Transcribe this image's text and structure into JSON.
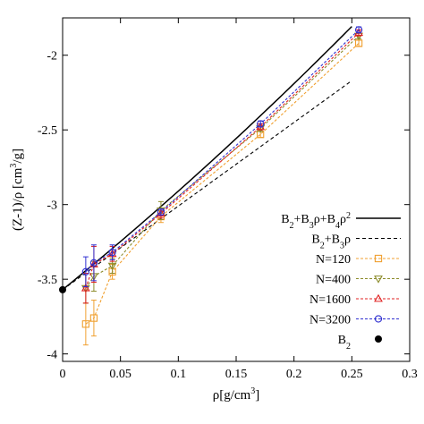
{
  "chart_data": {
    "type": "scatter",
    "title": "",
    "xlabel_main": "ρ[g/cm",
    "xlabel_sup": "3",
    "xlabel_tail": "]",
    "ylabel_main": "(Z-1)/ρ [cm",
    "ylabel_sup": "3",
    "ylabel_tail": "/g]",
    "xlim": [
      0,
      0.3
    ],
    "ylim": [
      -4.05,
      -1.75
    ],
    "xticks": [
      0,
      0.05,
      0.1,
      0.15,
      0.2,
      0.25,
      0.3
    ],
    "xtick_labels": [
      "0",
      "0.05",
      "0.1",
      "0.15",
      "0.2",
      "0.25",
      "0.3"
    ],
    "yticks": [
      -4,
      -3.5,
      -3,
      -2.5,
      -2
    ],
    "ytick_labels": [
      "-4",
      "-3.5",
      "-3",
      "-2.5",
      "-2"
    ],
    "legend_position": "bottom-right",
    "lines": [
      {
        "key": "b234",
        "legend_parts": [
          {
            "t": "B",
            "s": "base"
          },
          {
            "t": "2",
            "s": "sub"
          },
          {
            "t": "+B",
            "s": "base"
          },
          {
            "t": "3",
            "s": "sub"
          },
          {
            "t": "ρ+B",
            "s": "base"
          },
          {
            "t": "4",
            "s": "sub"
          },
          {
            "t": "ρ",
            "s": "base"
          },
          {
            "t": "2",
            "s": "sup"
          }
        ],
        "color": "#000000",
        "dash": "",
        "b2": -3.57,
        "b3": 6.3,
        "b4": 3.0,
        "x_range": [
          0,
          0.25
        ]
      },
      {
        "key": "b23",
        "legend_parts": [
          {
            "t": "B",
            "s": "base"
          },
          {
            "t": "2",
            "s": "sub"
          },
          {
            "t": "+B",
            "s": "base"
          },
          {
            "t": "3",
            "s": "sub"
          },
          {
            "t": "ρ",
            "s": "base"
          }
        ],
        "color": "#000000",
        "dash": "4,3",
        "b2": -3.57,
        "b3": 5.6,
        "b4": 0,
        "x_range": [
          0,
          0.25
        ]
      }
    ],
    "series": [
      {
        "key": "n120",
        "name": "N=120",
        "color": "#f0a030",
        "marker": "square",
        "points": [
          {
            "x": 0.02,
            "y": -3.8,
            "err": 0.14
          },
          {
            "x": 0.027,
            "y": -3.76,
            "err": 0.12
          },
          {
            "x": 0.043,
            "y": -3.45,
            "err": 0.05
          },
          {
            "x": 0.085,
            "y": -3.08,
            "err": 0.04
          },
          {
            "x": 0.171,
            "y": -2.53,
            "err": 0.02
          },
          {
            "x": 0.256,
            "y": -1.92,
            "err": 0.02
          }
        ]
      },
      {
        "key": "n400",
        "name": "N=400",
        "color": "#8b8b2a",
        "marker": "triangle-down",
        "points": [
          {
            "x": 0.02,
            "y": -3.56,
            "err": 0.1
          },
          {
            "x": 0.027,
            "y": -3.48,
            "err": 0.1
          },
          {
            "x": 0.043,
            "y": -3.41,
            "err": 0.05
          },
          {
            "x": 0.085,
            "y": -3.04,
            "err": 0.06
          },
          {
            "x": 0.171,
            "y": -2.49,
            "err": 0.02
          },
          {
            "x": 0.256,
            "y": -1.87,
            "err": 0.02
          }
        ]
      },
      {
        "key": "n1600",
        "name": "N=1600",
        "color": "#e02020",
        "marker": "triangle-up",
        "points": [
          {
            "x": 0.02,
            "y": -3.56,
            "err": 0.1
          },
          {
            "x": 0.027,
            "y": -3.4,
            "err": 0.12
          },
          {
            "x": 0.043,
            "y": -3.33,
            "err": 0.05
          },
          {
            "x": 0.085,
            "y": -3.06,
            "err": 0.03
          },
          {
            "x": 0.171,
            "y": -2.48,
            "err": 0.02
          },
          {
            "x": 0.256,
            "y": -1.85,
            "err": 0.02
          }
        ]
      },
      {
        "key": "n3200",
        "name": "N=3200",
        "color": "#3030d0",
        "marker": "circle",
        "points": [
          {
            "x": 0.02,
            "y": -3.45,
            "err": 0.1
          },
          {
            "x": 0.027,
            "y": -3.39,
            "err": 0.12
          },
          {
            "x": 0.043,
            "y": -3.32,
            "err": 0.05
          },
          {
            "x": 0.085,
            "y": -3.05,
            "err": 0.02
          },
          {
            "x": 0.171,
            "y": -2.46,
            "err": 0.02
          },
          {
            "x": 0.256,
            "y": -1.83,
            "err": 0.02
          }
        ]
      }
    ],
    "b2_point": {
      "legend_parts": [
        {
          "t": "B",
          "s": "base"
        },
        {
          "t": "2",
          "s": "sub"
        }
      ],
      "x": 0,
      "y": -3.57,
      "color": "#000000"
    }
  }
}
